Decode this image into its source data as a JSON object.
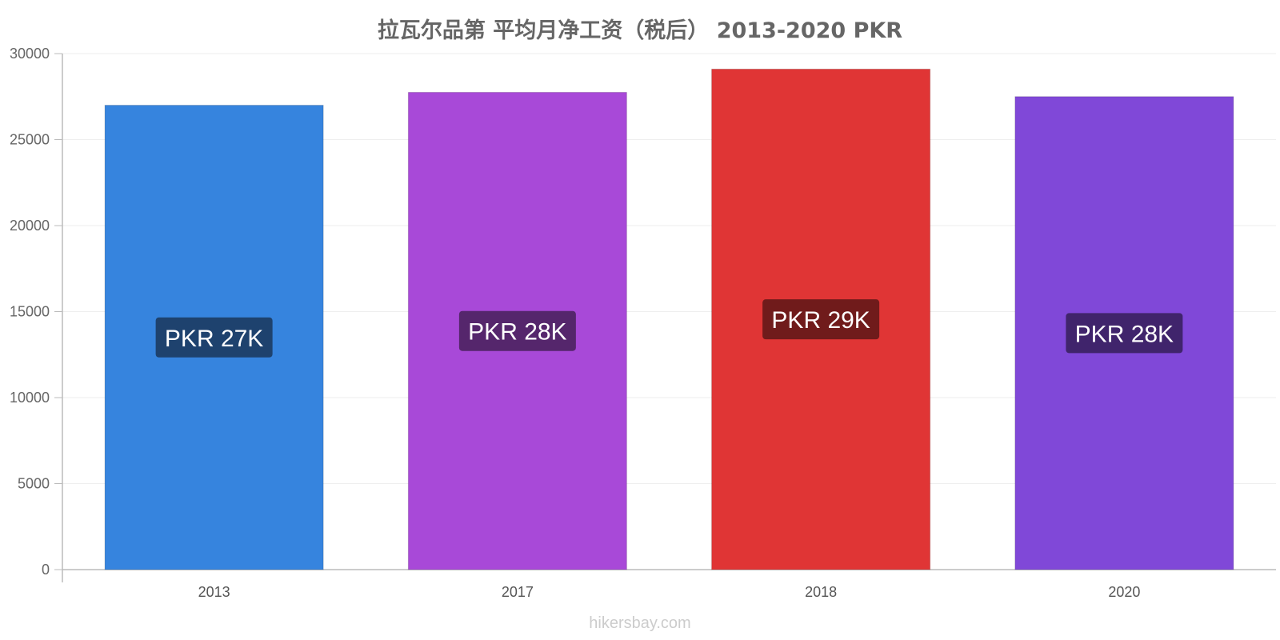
{
  "watermark": "hikersbay.com",
  "chart_data": {
    "type": "bar",
    "title": "拉瓦尔品第 平均月净工资（税后） 2013-2020 PKR",
    "xlabel": "",
    "ylabel": "",
    "categories": [
      "2013",
      "2017",
      "2018",
      "2020"
    ],
    "values": [
      27000,
      27750,
      29100,
      27500
    ],
    "data_labels": [
      "PKR 27K",
      "PKR 28K",
      "PKR 29K",
      "PKR 28K"
    ],
    "colors": [
      "#3684de",
      "#a849d8",
      "#e03535",
      "#8048d8"
    ],
    "label_bg_colors": [
      "#1e426e",
      "#55266c",
      "#701b1b",
      "#40246c"
    ],
    "ylim": [
      0,
      30000
    ],
    "yticks": [
      0,
      5000,
      10000,
      15000,
      20000,
      25000,
      30000
    ],
    "grid": true,
    "legend": "none"
  }
}
